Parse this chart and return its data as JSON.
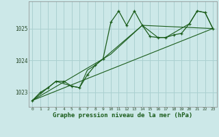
{
  "title": "Graphe pression niveau de la mer (hPa)",
  "bg_color": "#cce8e8",
  "grid_color": "#aad0d0",
  "line_color": "#1a5c1a",
  "xlim": [
    -0.5,
    23.5
  ],
  "ylim": [
    1022.55,
    1025.85
  ],
  "yticks": [
    1023,
    1024,
    1025
  ],
  "xticks": [
    0,
    1,
    2,
    3,
    4,
    5,
    6,
    7,
    8,
    9,
    10,
    11,
    12,
    13,
    14,
    15,
    16,
    17,
    18,
    19,
    20,
    21,
    22,
    23
  ],
  "main_line": [
    [
      0,
      1022.75
    ],
    [
      1,
      1023.0
    ],
    [
      2,
      1023.15
    ],
    [
      3,
      1023.35
    ],
    [
      4,
      1023.35
    ],
    [
      5,
      1023.2
    ],
    [
      6,
      1023.15
    ],
    [
      7,
      1023.55
    ],
    [
      8,
      1023.85
    ],
    [
      9,
      1024.05
    ],
    [
      10,
      1025.2
    ],
    [
      11,
      1025.55
    ],
    [
      12,
      1025.1
    ],
    [
      13,
      1025.55
    ],
    [
      14,
      1025.1
    ],
    [
      15,
      1024.75
    ],
    [
      16,
      1024.72
    ],
    [
      17,
      1024.72
    ],
    [
      18,
      1024.8
    ],
    [
      19,
      1024.85
    ],
    [
      20,
      1025.15
    ],
    [
      21,
      1025.55
    ],
    [
      22,
      1025.5
    ],
    [
      23,
      1025.0
    ]
  ],
  "line2": [
    [
      0,
      1022.75
    ],
    [
      3,
      1023.35
    ],
    [
      5,
      1023.2
    ],
    [
      6,
      1023.15
    ],
    [
      7,
      1023.7
    ],
    [
      8,
      1023.85
    ],
    [
      9,
      1024.05
    ],
    [
      10,
      1024.2
    ],
    [
      14,
      1025.1
    ],
    [
      16,
      1024.72
    ],
    [
      17,
      1024.72
    ],
    [
      20,
      1025.15
    ],
    [
      21,
      1025.55
    ],
    [
      22,
      1025.5
    ],
    [
      23,
      1025.0
    ]
  ],
  "line3": [
    [
      0,
      1022.75
    ],
    [
      9,
      1024.05
    ],
    [
      14,
      1025.1
    ],
    [
      23,
      1025.0
    ]
  ],
  "line4": [
    [
      0,
      1022.75
    ],
    [
      23,
      1025.0
    ]
  ]
}
